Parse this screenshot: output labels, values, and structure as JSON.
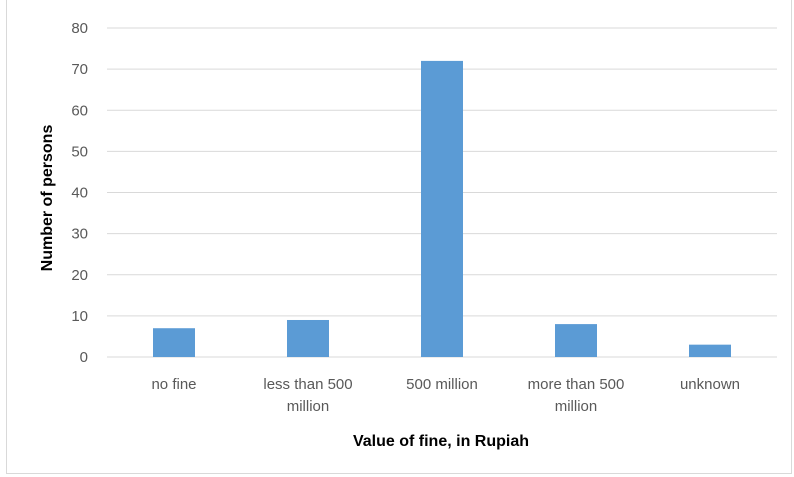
{
  "chart_data": {
    "type": "bar",
    "categories": [
      [
        "no fine"
      ],
      [
        "less than 500",
        "million"
      ],
      [
        "500 million"
      ],
      [
        "more than 500",
        "million"
      ],
      [
        "unknown"
      ]
    ],
    "values": [
      7,
      9,
      72,
      8,
      3
    ],
    "xlabel": "Value of fine, in Rupiah",
    "ylabel": "Number of persons",
    "ylim": [
      0,
      80
    ],
    "yticks": [
      0,
      10,
      20,
      30,
      40,
      50,
      60,
      70,
      80
    ],
    "grid": true,
    "legend": "none",
    "bar_color": "#5b9bd5"
  }
}
